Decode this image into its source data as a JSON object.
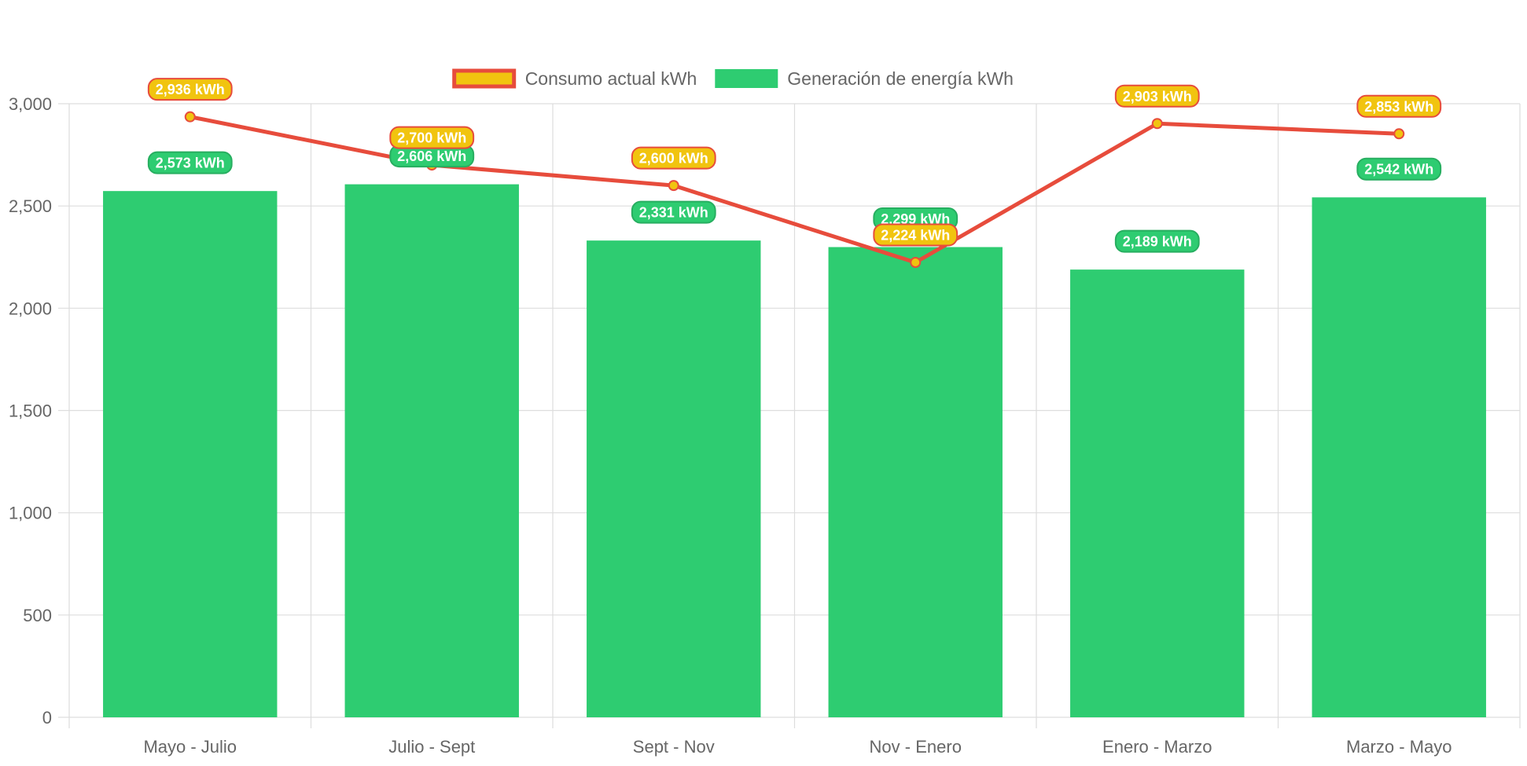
{
  "chart_data": {
    "type": "bar",
    "categories": [
      "Mayo - Julio",
      "Julio - Sept",
      "Sept - Nov",
      "Nov - Enero",
      "Enero - Marzo",
      "Marzo - Mayo"
    ],
    "series": [
      {
        "name": "Generación de energía kWh",
        "type": "bar",
        "values": [
          2573,
          2606,
          2331,
          2299,
          2189,
          2542
        ],
        "labels": [
          "2,573 kWh",
          "2,606 kWh",
          "2,331 kWh",
          "2,299 kWh",
          "2,189 kWh",
          "2,542 kWh"
        ],
        "color": "#2ecc71",
        "label_border": "#27ae60"
      },
      {
        "name": "Consumo actual kWh",
        "type": "line",
        "values": [
          2936,
          2700,
          2600,
          2224,
          2903,
          2853
        ],
        "labels": [
          "2,936 kWh",
          "2,700 kWh",
          "2,600 kWh",
          "2,224 kWh",
          "2,903 kWh",
          "2,853 kWh"
        ],
        "color": "#f1c40f",
        "line_color": "#e74c3c",
        "label_border": "#e74c3c"
      }
    ],
    "legend_order": [
      1,
      0
    ],
    "yticks": [
      "0",
      "500",
      "1,000",
      "1,500",
      "2,000",
      "2,500",
      "3,000"
    ],
    "ytick_values": [
      0,
      500,
      1000,
      1500,
      2000,
      2500,
      3000
    ],
    "ylim": [
      0,
      3000
    ],
    "grid": true,
    "legend_position": "top-center",
    "title": "",
    "xlabel": "",
    "ylabel": ""
  }
}
